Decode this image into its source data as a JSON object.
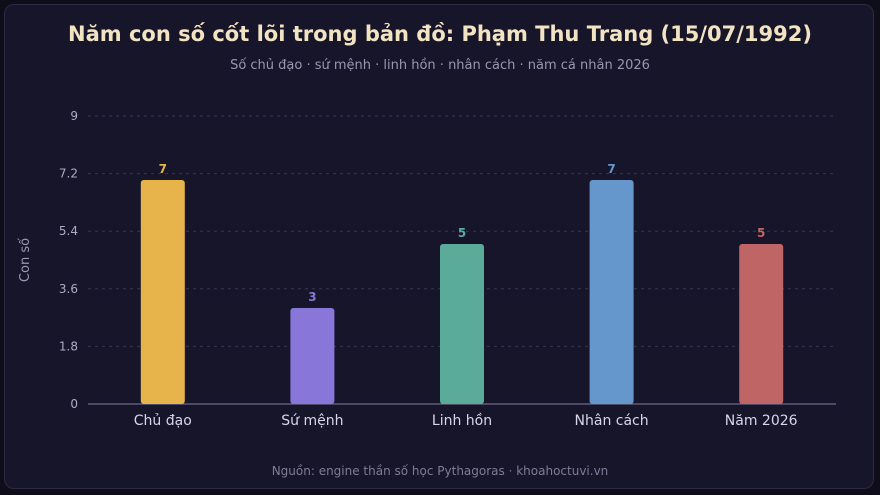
{
  "chart_data": {
    "type": "bar",
    "title": "Năm con số cốt lõi trong bản đồ: Phạm Thu Trang (15/07/1992)",
    "subtitle": "Số chủ đạo · sứ mệnh · linh hồn · nhân cách · năm cá nhân 2026",
    "ylabel": "Con số",
    "xlabel": "",
    "categories": [
      "Chủ đạo",
      "Sứ mệnh",
      "Linh hồn",
      "Nhân cách",
      "Năm 2026"
    ],
    "values": [
      7,
      3,
      5,
      7,
      5
    ],
    "value_labels": [
      "7",
      "3",
      "5",
      "7",
      "5"
    ],
    "colors": [
      "#e6b44a",
      "#8877d9",
      "#5aab9a",
      "#6597cc",
      "#bf6566"
    ],
    "ylim": [
      0,
      9
    ],
    "yticks": [
      0,
      1.8,
      3.6,
      5.4,
      7.2,
      9
    ],
    "ytick_labels": [
      "0",
      "1.8",
      "3.6",
      "5.4",
      "7.2",
      "9"
    ],
    "grid": true,
    "source": "Nguồn: engine thần số học Pythagoras · khoahoctuvi.vn"
  }
}
